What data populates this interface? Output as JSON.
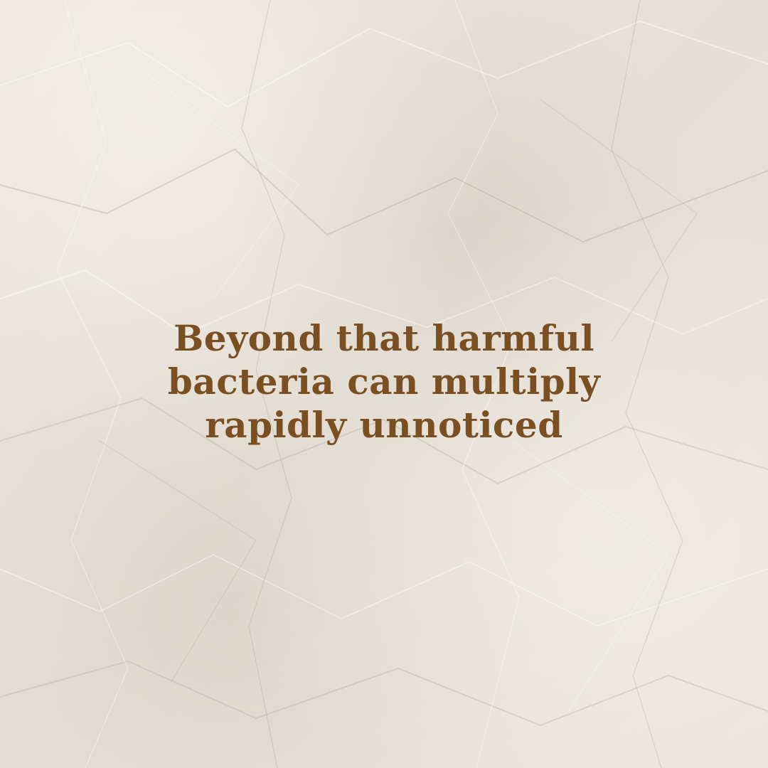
{
  "background": {
    "style": "crumpled-paper",
    "color": "#ebe5dc"
  },
  "message": {
    "lines": [
      "Beyond that harmful",
      "bacteria can multiply",
      "rapidly unnoticed"
    ],
    "color": "#7a4f22"
  }
}
